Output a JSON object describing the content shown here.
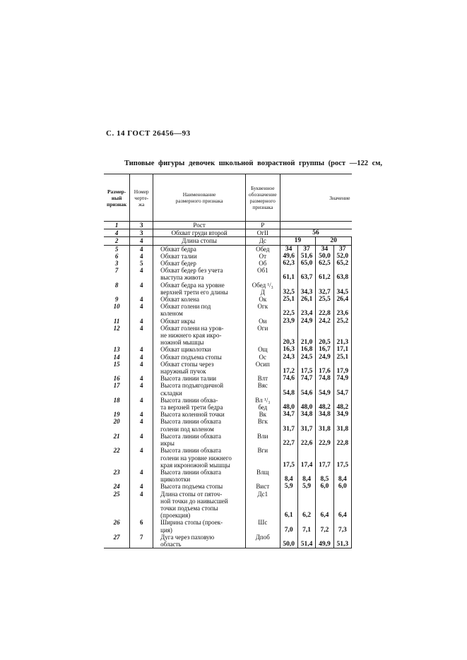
{
  "header": "С. 14 ГОСТ 26456—93",
  "title": "Типовые фигуры девочек школьной возрастной группы (рост —122 см,",
  "columns": [
    "Размер-\nный\nпризнак",
    "Номер\nчерте-\nжа",
    "Наименование\nразмерного признака",
    "Буквенное\nобозначение\nразмерного\nпризнака",
    "Значение"
  ],
  "top_rows": [
    {
      "num": "1",
      "fig": "3",
      "name": "Рост",
      "code": "Р",
      "value": ""
    },
    {
      "num": "4",
      "fig": "3",
      "name": "Обхват груди второй",
      "code": "ОгII",
      "value": "56"
    },
    {
      "num": "2",
      "fig": "4",
      "name": "Длина стопы",
      "code": "Дс",
      "values": [
        "19",
        "20"
      ]
    }
  ],
  "rows": [
    {
      "num": "5",
      "fig": "4",
      "name": "Обхват бедра",
      "code": "Обед",
      "values": [
        "34",
        "37",
        "34",
        "37"
      ]
    },
    {
      "num": "6",
      "fig": "4",
      "name": "Обхват талии",
      "code": "От",
      "values": [
        "49,6",
        "51,6",
        "50,0",
        "52,0"
      ]
    },
    {
      "num": "3",
      "fig": "5",
      "name": "Обхват бедер",
      "code": "Об",
      "values": [
        "62,3",
        "65,0",
        "62,5",
        "65,2"
      ]
    },
    {
      "num": "7",
      "fig": "4",
      "name": "Обхват бедер без учета\nвыступа живота",
      "code": "Об1",
      "values": [
        "61,1",
        "63,7",
        "61,2",
        "63,8"
      ]
    },
    {
      "num": "8",
      "fig": "4",
      "name": "Обхват бедра на уровне\nверхней трети его длины",
      "code": "Обед ¹/₃\nД",
      "values": [
        "32,5",
        "34,3",
        "32,7",
        "34,5"
      ]
    },
    {
      "num": "9",
      "fig": "4",
      "name": "Обхват колена",
      "code": "Ок",
      "values": [
        "25,1",
        "26,1",
        "25,5",
        "26,4"
      ]
    },
    {
      "num": "10",
      "fig": "4",
      "name": "Обхват голени под\nколеном",
      "code": "Огк",
      "values": [
        "22,5",
        "23,4",
        "22,8",
        "23,6"
      ]
    },
    {
      "num": "11",
      "fig": "4",
      "name": "Обхват икры",
      "code": "Ои",
      "values": [
        "23,9",
        "24,9",
        "24,2",
        "25,2"
      ]
    },
    {
      "num": "12",
      "fig": "4",
      "name": "Обхват голени на уров-\nне нижнего края икро-\nножной мышцы",
      "code": "Оги",
      "values": [
        "20,3",
        "21,0",
        "20,5",
        "21,3"
      ]
    },
    {
      "num": "13",
      "fig": "4",
      "name": "Обхват щиколотки",
      "code": "Ощ",
      "values": [
        "16,3",
        "16,8",
        "16,7",
        "17,1"
      ]
    },
    {
      "num": "14",
      "fig": "4",
      "name": "Обхват подъема стопы",
      "code": "Ос",
      "values": [
        "24,3",
        "24,5",
        "24,9",
        "25,1"
      ]
    },
    {
      "num": "15",
      "fig": "4",
      "name": "Обхват стопы через\nнаружный пучок",
      "code": "Осип",
      "values": [
        "17,2",
        "17,5",
        "17,6",
        "17,9"
      ]
    },
    {
      "num": "16",
      "fig": "4",
      "name": "Высота линии талии",
      "code": "Влт",
      "values": [
        "74,6",
        "74,7",
        "74,8",
        "74,9"
      ]
    },
    {
      "num": "17",
      "fig": "4",
      "name": "Высота подъягодичной\nскладки",
      "code": "Вяс",
      "values": [
        "54,8",
        "54,6",
        "54,9",
        "54,7"
      ]
    },
    {
      "num": "18",
      "fig": "4",
      "name": "Высота линии обхва-\nта верхней трети бедра",
      "code": "Вл ¹/₃\nбед",
      "values": [
        "48,0",
        "48,0",
        "48,2",
        "48,2"
      ]
    },
    {
      "num": "19",
      "fig": "4",
      "name": "Высота коленной точки",
      "code": "Вк",
      "values": [
        "34,7",
        "34,8",
        "34,8",
        "34,9"
      ]
    },
    {
      "num": "20",
      "fig": "4",
      "name": "Высота линии обхвата\nголени под коленом",
      "code": "Вгк",
      "values": [
        "31,7",
        "31,7",
        "31,8",
        "31,8"
      ]
    },
    {
      "num": "21",
      "fig": "4",
      "name": "Высота линии обхвата\nикры",
      "code": "Вли",
      "values": [
        "22,7",
        "22,6",
        "22,9",
        "22,8"
      ]
    },
    {
      "num": "22",
      "fig": "4",
      "name": "Высота линии обхвата\nголени на уровне нижнего\nкрая икроножной мышцы",
      "code": "Вги",
      "values": [
        "17,5",
        "17,4",
        "17,7",
        "17,5"
      ]
    },
    {
      "num": "23",
      "fig": "4",
      "name": "Высота линии обхвата\nщиколотки",
      "code": "Влщ",
      "values": [
        "8,4",
        "8,4",
        "8,5",
        "8,4"
      ]
    },
    {
      "num": "24",
      "fig": "4",
      "name": "Высота подъема стопы",
      "code": "Вист",
      "values": [
        "5,9",
        "5,9",
        "6,0",
        "6,0"
      ]
    },
    {
      "num": "25",
      "fig": "4",
      "name": "Длина стопы от пяточ-\nной точки до наивысшей\nточки подъема стопы\n(проекция)",
      "code": "Дс1",
      "values": [
        "6,1",
        "6,2",
        "6,4",
        "6,4"
      ]
    },
    {
      "num": "26",
      "fig": "6",
      "name": "Ширина стопы (проек-\nция)",
      "code": "Шс",
      "values": [
        "7,0",
        "7,1",
        "7,2",
        "7,3"
      ]
    },
    {
      "num": "27",
      "fig": "7",
      "name": "Дуга через паховую\nобласть",
      "code": "Дпоб",
      "values": [
        "50,0",
        "51,4",
        "49,9",
        "51,3"
      ]
    }
  ]
}
